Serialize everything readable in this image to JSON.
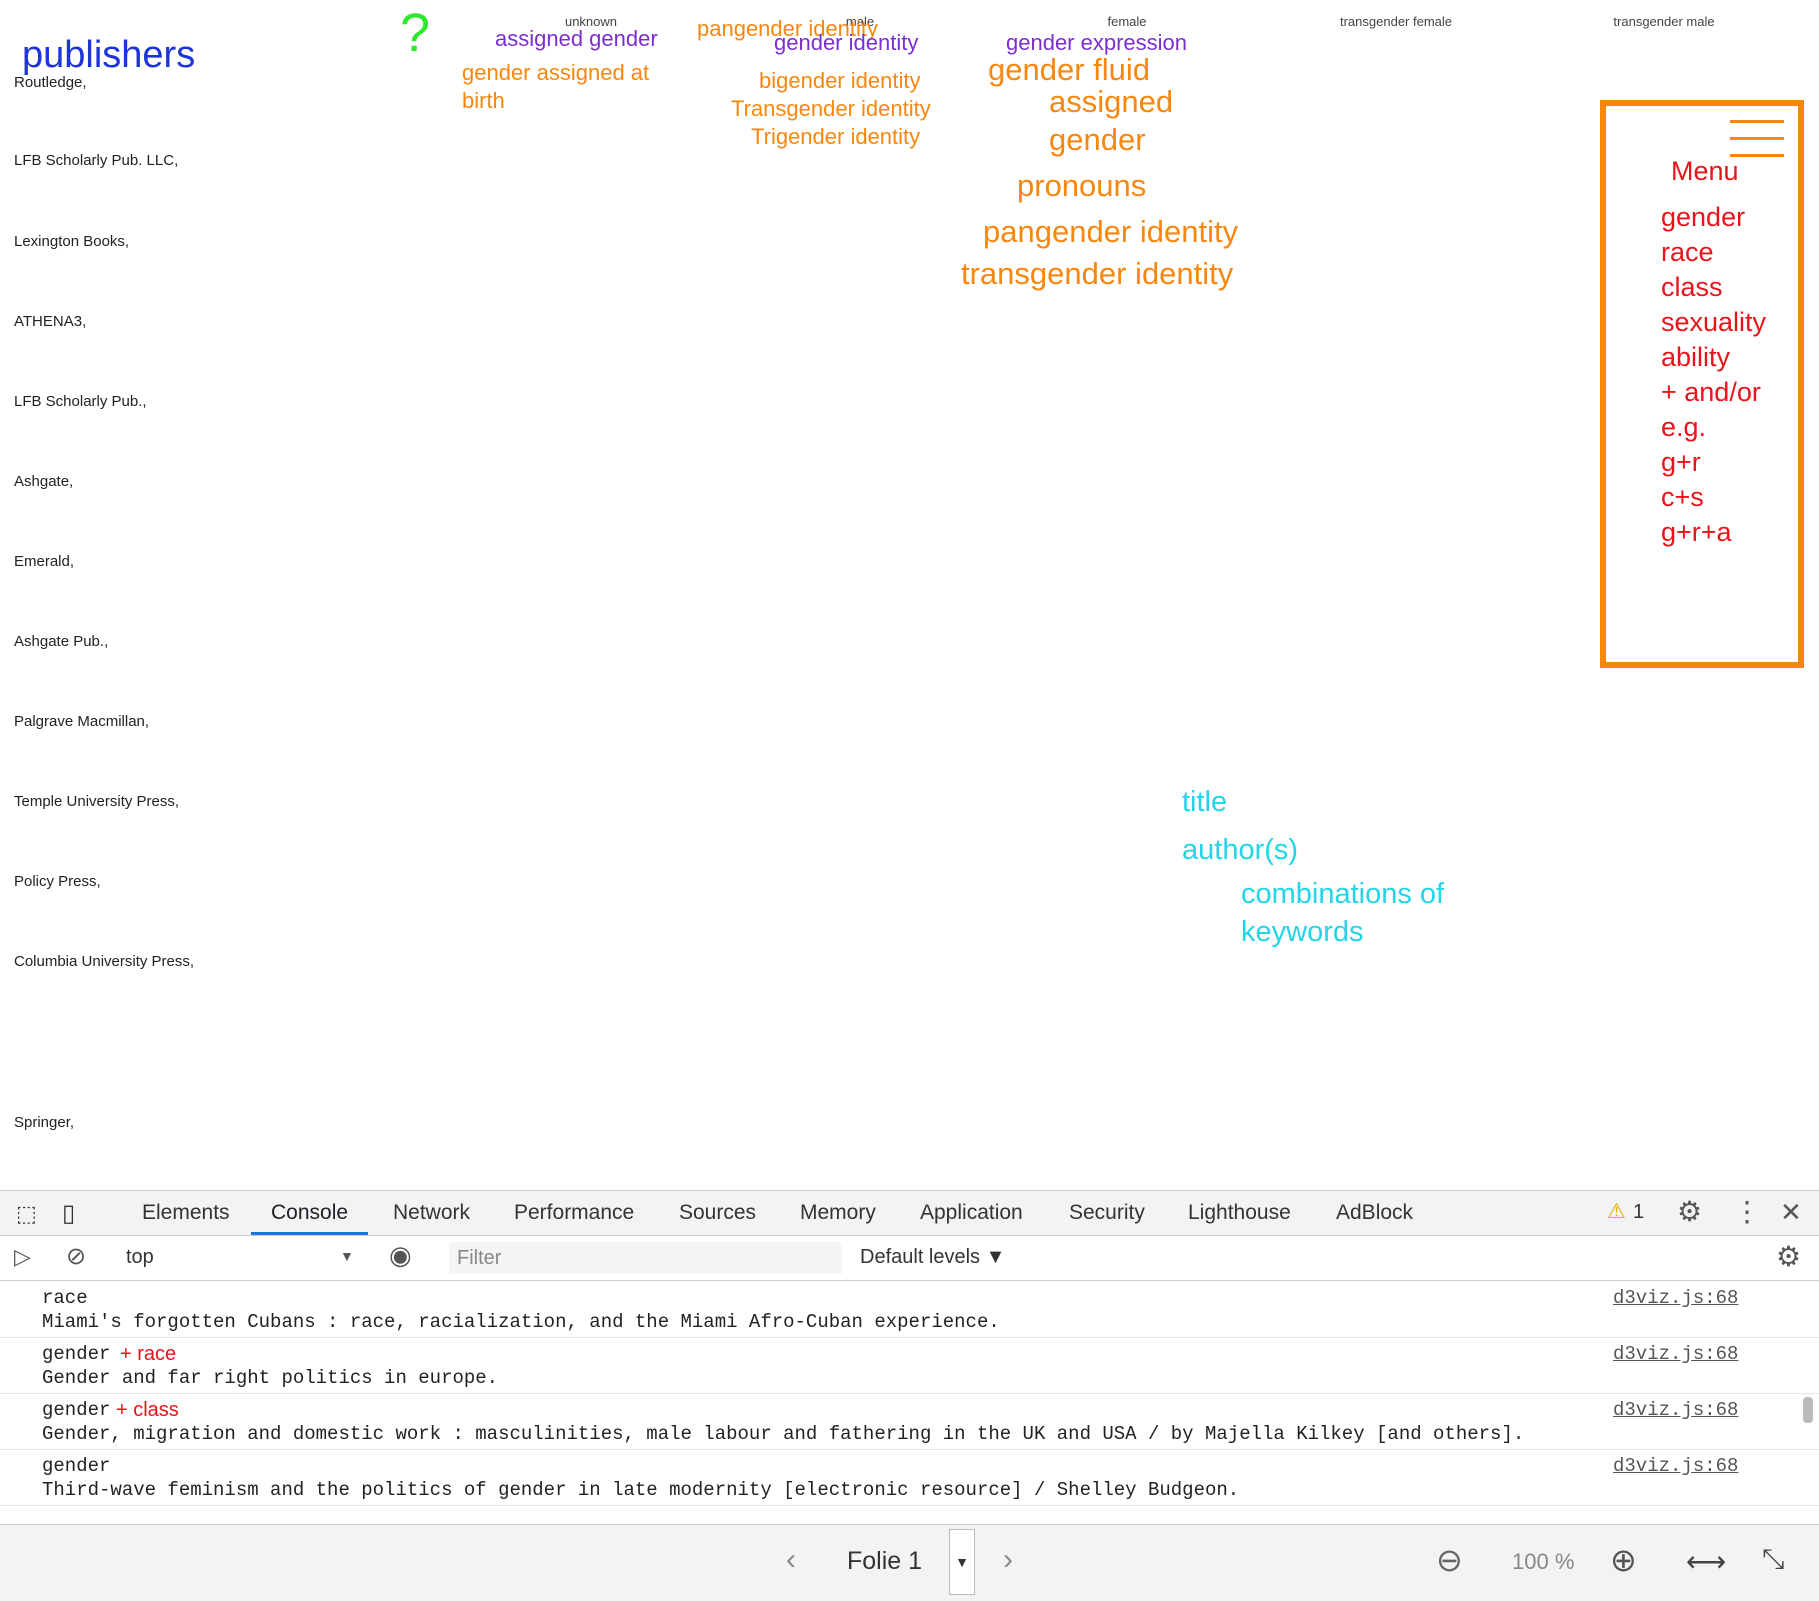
{
  "viz": {
    "columns": [
      "unknown",
      "male",
      "female",
      "transgender female",
      "transgender male"
    ],
    "publishers": [
      "Routledge,",
      "LFB Scholarly Pub. LLC,",
      "Lexington Books,",
      "ATHENA3,",
      "LFB Scholarly Pub.,",
      "Ashgate,",
      "Emerald,",
      "Ashgate Pub.,",
      "Palgrave Macmillan,",
      "Temple University Press,",
      "Policy Press,",
      "Columbia University Press,",
      "",
      "Springer,"
    ],
    "colors": {
      "green": "#8dc63f",
      "light_green": "#c9e6b3",
      "orange": "#f5a642",
      "purple": "#a57dc4",
      "pink": "#f4b8d0",
      "blue": "#6f9fd8",
      "yellow": "#f7f29a",
      "red": "#ee6a5a"
    }
  },
  "annotations": {
    "publishers": "publishers",
    "question": "?",
    "assigned_gender": "assigned gender",
    "gender_assigned_at_birth_1": "gender assigned at",
    "gender_assigned_at_birth_2": "birth",
    "pangender_identity_top": "pangender identity",
    "gender_identity": "gender identity",
    "bigender_identity": "bigender identity",
    "transgender_identity_small": "Transgender identity",
    "trigender_identity": "Trigender identity",
    "gender_expression": "gender expression",
    "gender_fluid": "gender fluid",
    "assigned": "assigned",
    "gender": "gender",
    "pronouns": "pronouns",
    "pangender_identity": "pangender identity",
    "transgender_identity": "transgender identity",
    "title": "title",
    "authors": "author(s)",
    "combinations_1": "combinations of",
    "combinations_2": "keywords"
  },
  "menu": {
    "title": "Menu",
    "items": [
      "gender",
      "race",
      "class",
      "sexuality",
      "ability",
      "+ and/or",
      "e.g.",
      "g+r",
      "c+s",
      "g+r+a"
    ]
  },
  "devtools": {
    "tabs": [
      "Elements",
      "Console",
      "Network",
      "Performance",
      "Sources",
      "Memory",
      "Application",
      "Security",
      "Lighthouse",
      "AdBlock"
    ],
    "active_tab": "Console",
    "warning_count": "1",
    "context": "top",
    "filter_placeholder": "Filter",
    "levels": "Default levels ▼",
    "logs": [
      {
        "keyword": "race",
        "extra": "",
        "message": "Miami's forgotten Cubans : race, racialization, and the Miami Afro-Cuban experience.",
        "source": "d3viz.js:68"
      },
      {
        "keyword": "gender",
        "extra": "+ race",
        "message": "Gender and far right politics in europe.",
        "source": "d3viz.js:68"
      },
      {
        "keyword": "gender",
        "extra": "+ class",
        "message": "Gender, migration and domestic work : masculinities, male labour and fathering in the UK and USA / by Majella Kilkey [and others].",
        "source": "d3viz.js:68"
      },
      {
        "keyword": "gender",
        "extra": "",
        "message": "Third-wave feminism and the politics of gender in late modernity [electronic resource] / Shelley Budgeon.",
        "source": "d3viz.js:68"
      }
    ]
  },
  "statusbar": {
    "slide": "Folie 1",
    "zoom": "100 %"
  }
}
